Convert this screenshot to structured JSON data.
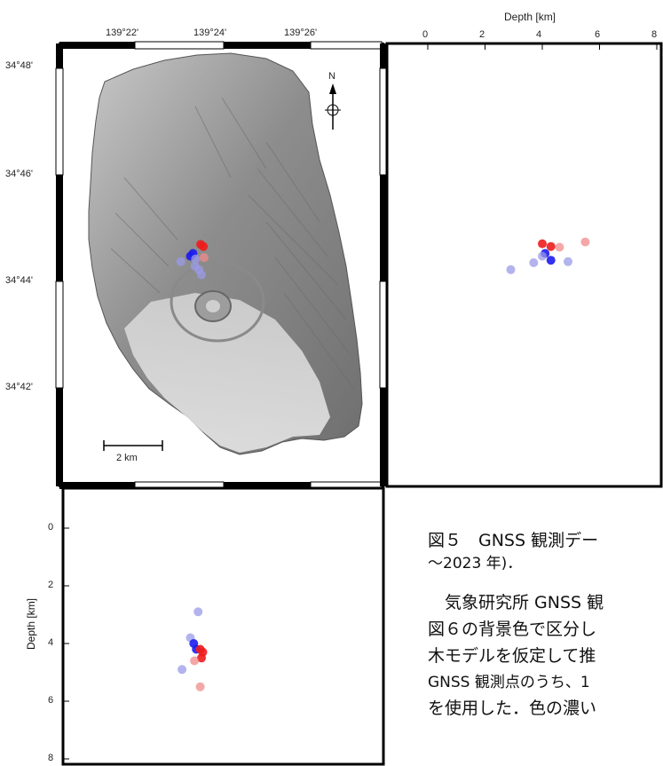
{
  "map": {
    "lon_ticks": [
      "139°22'",
      "139°24'",
      "139°26'"
    ],
    "lat_ticks": [
      "34°48'",
      "34°46'",
      "34°44'",
      "34°42'"
    ],
    "north_label": "N",
    "scale_label": "2 km"
  },
  "right_panel": {
    "axis_title": "Depth [km]",
    "depth_ticks": [
      "0",
      "2",
      "4",
      "6",
      "8"
    ]
  },
  "bottom_panel": {
    "axis_title": "Depth [km]",
    "depth_ticks": [
      "0",
      "2",
      "4",
      "6",
      "8"
    ]
  },
  "caption": {
    "line1": "図５　GNSS 観測デー",
    "line2": "～2023 年)．",
    "line3": "　気象研究所 GNSS 観",
    "line4": "図６の背景色で区分し",
    "line5": "木モデルを仮定して推",
    "line6": "GNSS 観測点のうち、1",
    "line7": "を使用した．色の濃い"
  },
  "colors": {
    "red": "#ee1c1c",
    "blue": "#1c1cee",
    "light_red": "#f08a8a",
    "light_blue": "#9a9ae8"
  },
  "chart_data": {
    "type": "scatter",
    "map_points": [
      {
        "lon": 139.4012,
        "lat": 34.7418,
        "color": "red"
      },
      {
        "lon": 139.4022,
        "lat": 34.7412,
        "color": "red"
      },
      {
        "lon": 139.3982,
        "lat": 34.7392,
        "color": "blue"
      },
      {
        "lon": 139.3972,
        "lat": 34.7384,
        "color": "blue"
      },
      {
        "lon": 139.3992,
        "lat": 34.7376,
        "color": "light_blue"
      },
      {
        "lon": 139.3935,
        "lat": 34.7368,
        "color": "light_blue"
      },
      {
        "lon": 139.399,
        "lat": 34.7355,
        "color": "light_blue"
      },
      {
        "lon": 139.4005,
        "lat": 34.7345,
        "color": "light_blue"
      },
      {
        "lon": 139.4015,
        "lat": 34.733,
        "color": "light_blue"
      },
      {
        "lon": 139.4025,
        "lat": 34.738,
        "color": "light_red"
      }
    ],
    "ew_section_points": [
      {
        "depth": 4.0,
        "lat": 34.742,
        "color": "red"
      },
      {
        "depth": 4.3,
        "lat": 34.7412,
        "color": "red"
      },
      {
        "depth": 4.6,
        "lat": 34.741,
        "color": "light_red"
      },
      {
        "depth": 5.5,
        "lat": 34.7425,
        "color": "light_red"
      },
      {
        "depth": 4.1,
        "lat": 34.7392,
        "color": "blue"
      },
      {
        "depth": 4.3,
        "lat": 34.7372,
        "color": "blue"
      },
      {
        "depth": 4.0,
        "lat": 34.7384,
        "color": "light_blue"
      },
      {
        "depth": 4.9,
        "lat": 34.7368,
        "color": "light_blue"
      },
      {
        "depth": 2.9,
        "lat": 34.7345,
        "color": "light_blue"
      },
      {
        "depth": 3.7,
        "lat": 34.7365,
        "color": "light_blue"
      }
    ],
    "ns_section_points": [
      {
        "lon": 139.4002,
        "depth": 2.9,
        "color": "light_blue"
      },
      {
        "lon": 139.3972,
        "depth": 3.8,
        "color": "light_blue"
      },
      {
        "lon": 139.3985,
        "depth": 4.0,
        "color": "blue"
      },
      {
        "lon": 139.3995,
        "depth": 4.2,
        "color": "blue"
      },
      {
        "lon": 139.401,
        "depth": 4.2,
        "color": "red"
      },
      {
        "lon": 139.402,
        "depth": 4.3,
        "color": "red"
      },
      {
        "lon": 139.4015,
        "depth": 4.5,
        "color": "red"
      },
      {
        "lon": 139.3988,
        "depth": 4.6,
        "color": "light_red"
      },
      {
        "lon": 139.394,
        "depth": 4.9,
        "color": "light_blue"
      },
      {
        "lon": 139.401,
        "depth": 5.5,
        "color": "light_red"
      }
    ],
    "lon_range": [
      139.3467,
      139.4717
    ],
    "lat_range": [
      34.6717,
      34.8
    ],
    "depth_range": [
      -1,
      8
    ]
  }
}
